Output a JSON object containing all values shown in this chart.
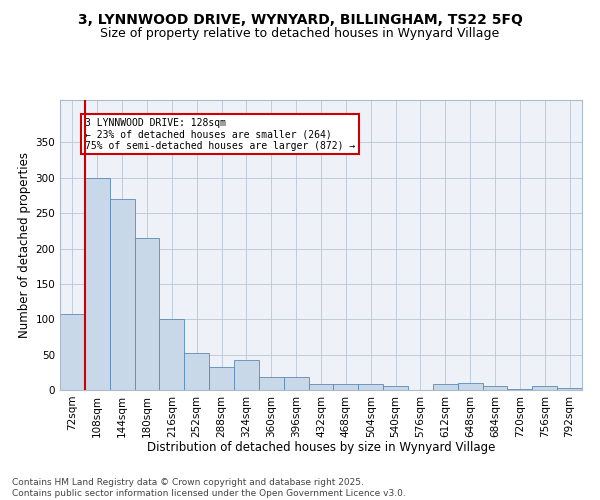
{
  "title1": "3, LYNNWOOD DRIVE, WYNYARD, BILLINGHAM, TS22 5FQ",
  "title2": "Size of property relative to detached houses in Wynyard Village",
  "xlabel": "Distribution of detached houses by size in Wynyard Village",
  "ylabel": "Number of detached properties",
  "bar_color": "#c8d8e8",
  "bar_edge_color": "#5a8ab5",
  "vline_color": "#cc0000",
  "vline_x": 0.5,
  "annotation_text": "3 LYNNWOOD DRIVE: 128sqm\n← 23% of detached houses are smaller (264)\n75% of semi-detached houses are larger (872) →",
  "annotation_box_color": "#cc0000",
  "categories": [
    "72sqm",
    "108sqm",
    "144sqm",
    "180sqm",
    "216sqm",
    "252sqm",
    "288sqm",
    "324sqm",
    "360sqm",
    "396sqm",
    "432sqm",
    "468sqm",
    "504sqm",
    "540sqm",
    "576sqm",
    "612sqm",
    "648sqm",
    "684sqm",
    "720sqm",
    "756sqm",
    "792sqm"
  ],
  "values": [
    108,
    300,
    270,
    215,
    100,
    52,
    33,
    42,
    18,
    18,
    8,
    8,
    8,
    5,
    0,
    8,
    10,
    5,
    2,
    5,
    3
  ],
  "ylim": [
    0,
    410
  ],
  "yticks": [
    0,
    50,
    100,
    150,
    200,
    250,
    300,
    350
  ],
  "grid_color": "#c0ccdd",
  "background_color": "#eef2f8",
  "footer_text": "Contains HM Land Registry data © Crown copyright and database right 2025.\nContains public sector information licensed under the Open Government Licence v3.0.",
  "title1_fontsize": 10,
  "title2_fontsize": 9,
  "xlabel_fontsize": 8.5,
  "ylabel_fontsize": 8.5,
  "tick_fontsize": 7.5,
  "footer_fontsize": 6.5
}
